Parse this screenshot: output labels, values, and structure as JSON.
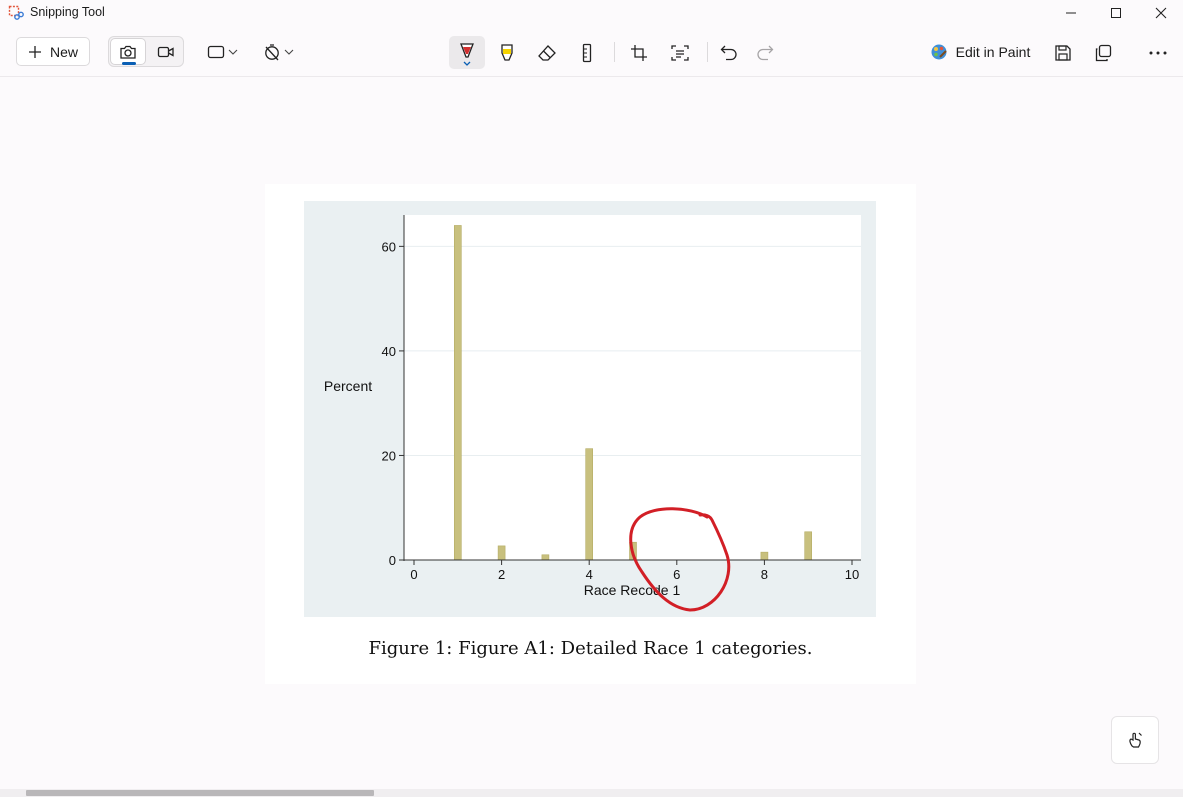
{
  "window": {
    "title": "Snipping Tool",
    "controls": [
      "minimize-icon",
      "maximize-icon",
      "close-icon"
    ]
  },
  "toolbar": {
    "new_label": "New",
    "edit_in_paint_label": "Edit in Paint",
    "mode_selected": "screenshot",
    "icons": [
      "camera-icon",
      "video-icon",
      "rectangle-mode-icon",
      "timer-off-icon",
      "ballpoint-pen-icon",
      "highlighter-icon",
      "eraser-icon",
      "ruler-icon",
      "crop-icon",
      "text-actions-icon",
      "undo-icon",
      "redo-icon",
      "paint-icon",
      "save-icon",
      "copy-icon",
      "more-icon"
    ],
    "pen_color": "#d32f2f",
    "highlighter_color": "#f5d300"
  },
  "document": {
    "caption": "Figure 1: Figure A1: Detailed Race 1 categories."
  },
  "chart_data": {
    "type": "bar",
    "title": "",
    "xlabel": "Race Recode 1",
    "ylabel": "Percent",
    "xlim": [
      0,
      10
    ],
    "ylim": [
      0,
      66
    ],
    "xticks": [
      0,
      2,
      4,
      6,
      8,
      10
    ],
    "yticks": [
      0,
      20,
      40,
      60
    ],
    "x": [
      1,
      2,
      3,
      4,
      5,
      8,
      9
    ],
    "values": [
      64,
      2.7,
      1,
      21.3,
      3.4,
      1.5,
      5.4
    ],
    "grid": "horizontal",
    "bar_color": "#c8c07e",
    "annotation": {
      "type": "freehand circle",
      "around_x": 6,
      "color": "#d21f26"
    }
  },
  "touch_button": {
    "icon": "touch-writing-icon"
  }
}
